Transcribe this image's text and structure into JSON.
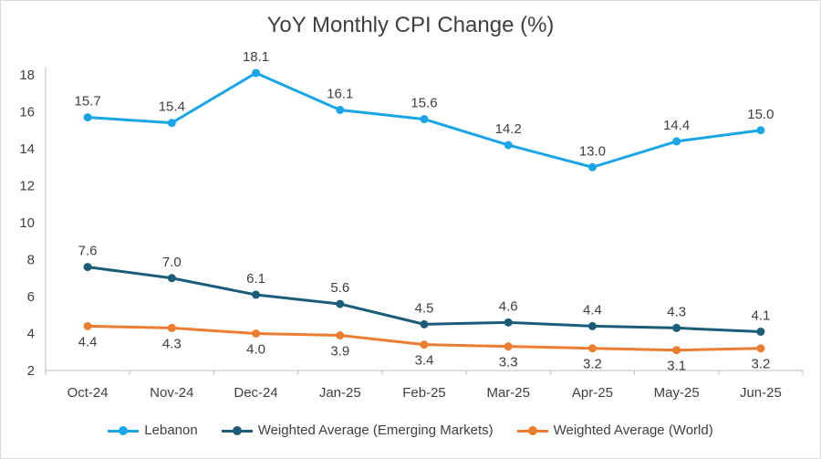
{
  "chart_data": {
    "type": "line",
    "title": "YoY Monthly CPI Change (%)",
    "categories": [
      "Oct-24",
      "Nov-24",
      "Dec-24",
      "Jan-25",
      "Feb-25",
      "Mar-25",
      "Apr-25",
      "May-25",
      "Jun-25"
    ],
    "ylim": [
      2,
      18
    ],
    "yticks": [
      2,
      4,
      6,
      8,
      10,
      12,
      14,
      16,
      18
    ],
    "grid": false,
    "legend": "bottom",
    "series": [
      {
        "name": "Lebanon",
        "color": "#1aa6e6",
        "values": [
          15.7,
          15.4,
          18.1,
          16.1,
          15.6,
          14.2,
          13.0,
          14.4,
          15.0
        ],
        "labels": [
          "15.7",
          "15.4",
          "18.1",
          "16.1",
          "15.6",
          "14.2",
          "13.0",
          "14.4",
          "15.0"
        ]
      },
      {
        "name": "Weighted Average (Emerging Markets)",
        "color": "#1b5d78",
        "values": [
          7.6,
          7.0,
          6.1,
          5.6,
          4.5,
          4.6,
          4.4,
          4.3,
          4.1
        ],
        "labels": [
          "7.6",
          "7.0",
          "6.1",
          "5.6",
          "4.5",
          "4.6",
          "4.4",
          "4.3",
          "4.1"
        ]
      },
      {
        "name": "Weighted Average (World)",
        "color": "#ed7d31",
        "values": [
          4.4,
          4.3,
          4.0,
          3.9,
          3.4,
          3.3,
          3.2,
          3.1,
          3.2
        ],
        "labels": [
          "4.4",
          "4.3",
          "4.0",
          "3.9",
          "3.4",
          "3.3",
          "3.2",
          "3.1",
          "3.2"
        ]
      }
    ]
  }
}
